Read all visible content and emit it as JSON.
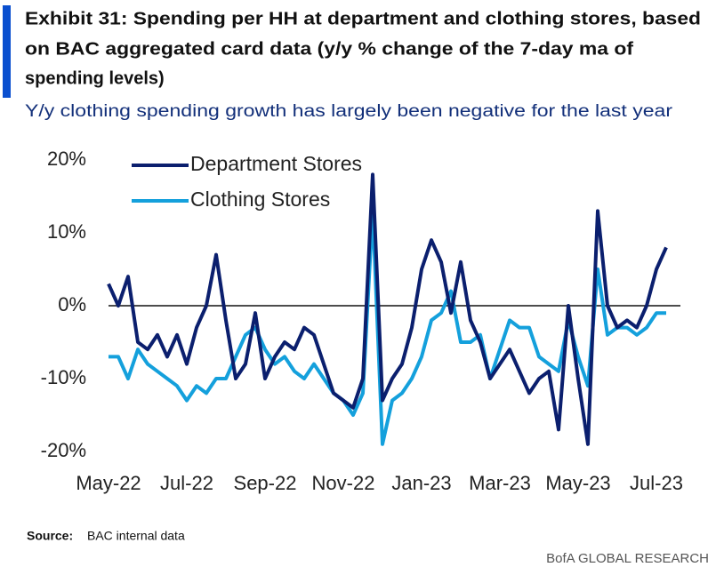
{
  "chart_data": {
    "type": "line",
    "title": [
      "Exhibit 31: Spending per HH at department and clothing stores, based",
      "on BAC aggregated card data (y/y % change of the 7-day ma of",
      "spending levels)"
    ],
    "subtitle": "Y/y clothing spending growth has largely been negative for the last year",
    "categories": [
      "May-22",
      null,
      null,
      null,
      null,
      null,
      null,
      null,
      "Jul-22",
      null,
      null,
      null,
      null,
      null,
      null,
      null,
      "Sep-22",
      null,
      null,
      null,
      null,
      null,
      null,
      null,
      "Nov-22",
      null,
      null,
      null,
      null,
      null,
      null,
      null,
      "Jan-23",
      null,
      null,
      null,
      null,
      null,
      null,
      null,
      "Mar-23",
      null,
      null,
      null,
      null,
      null,
      null,
      null,
      "May-23",
      null,
      null,
      null,
      null,
      null,
      null,
      null,
      "Jul-23",
      null
    ],
    "series": [
      {
        "name": "Department Stores",
        "color": "#0b1f6e",
        "values": [
          3,
          0,
          4,
          -5,
          -6,
          -4,
          -7,
          -4,
          -8,
          -3,
          0,
          7,
          -2,
          -10,
          -8,
          -1,
          -10,
          -7,
          -5,
          -6,
          -3,
          -4,
          -8,
          -12,
          -13,
          -14,
          -10,
          18,
          -13,
          -10,
          -8,
          -3,
          5,
          9,
          6,
          -1,
          6,
          -2,
          -5,
          -10,
          -8,
          -6,
          -9,
          -12,
          -10,
          -9,
          -17,
          0,
          -10,
          -19,
          13,
          0,
          -3,
          -2,
          -3,
          0,
          5,
          8
        ]
      },
      {
        "name": "Clothing Stores",
        "color": "#14a0dc",
        "values": [
          -7,
          -7,
          -10,
          -6,
          -8,
          -9,
          -10,
          -11,
          -13,
          -11,
          -12,
          -10,
          -10,
          -7,
          -4,
          -3,
          -6,
          -8,
          -7,
          -9,
          -10,
          -8,
          -10,
          -12,
          -13,
          -15,
          -12,
          13,
          -19,
          -13,
          -12,
          -10,
          -7,
          -2,
          -1,
          2,
          -5,
          -5,
          -4,
          -10,
          -6,
          -2,
          -3,
          -3,
          -7,
          -8,
          -9,
          -2,
          -7,
          -11,
          5,
          -4,
          -3,
          -3,
          -4,
          -3,
          -1,
          -1
        ]
      }
    ],
    "ylim": [
      -20,
      20
    ],
    "yticks": [
      {
        "value": 20,
        "label": "20%"
      },
      {
        "value": 10,
        "label": "10%"
      },
      {
        "value": 0,
        "label": "0%"
      },
      {
        "value": -10,
        "label": "-10%"
      },
      {
        "value": -20,
        "label": "-20%"
      }
    ],
    "zero_line": true,
    "legend": "top-left",
    "source_label": "Source:",
    "source": "BAC internal data",
    "footer": "BofA GLOBAL RESEARCH"
  }
}
